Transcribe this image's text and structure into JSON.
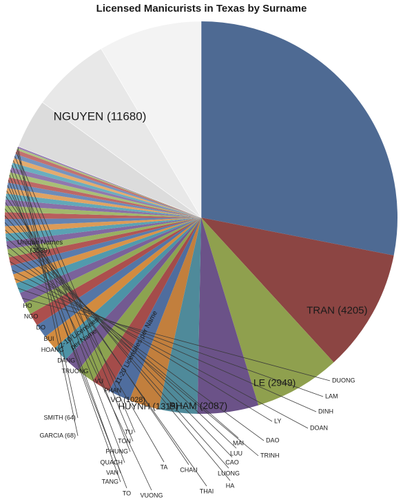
{
  "chart_data": {
    "type": "pie",
    "title": "Licensed Manicurists in Texas by Surname",
    "slices": [
      {
        "label": "NGUYEN (11680)",
        "value": 11680,
        "color": "#4e6a93"
      },
      {
        "label": "TRAN (4205)",
        "value": 4205,
        "color": "#8c4543"
      },
      {
        "label": "LE (2949)",
        "value": 2949,
        "color": "#8fa04e"
      },
      {
        "label": "PHAM (2087)",
        "value": 2087,
        "color": "#6b5288"
      },
      {
        "label": "HUYNH (1319)",
        "value": 1319,
        "color": "#4f8a9a"
      },
      {
        "label": "VO (1028)",
        "value": 1028,
        "color": "#c27f3d"
      },
      {
        "label": "PHAN",
        "value": 760,
        "color": "#4f6d9e"
      },
      {
        "label": "VU",
        "value": 640,
        "color": "#a44c4a"
      },
      {
        "label": "TRUONG",
        "value": 610,
        "color": "#8ca350"
      },
      {
        "label": "DANG",
        "value": 560,
        "color": "#735a91"
      },
      {
        "label": "HOANG",
        "value": 530,
        "color": "#4d93a6"
      },
      {
        "label": "BUI",
        "value": 500,
        "color": "#d28b3f"
      },
      {
        "label": "DO",
        "value": 480,
        "color": "#5476a6"
      },
      {
        "label": "NGO",
        "value": 440,
        "color": "#ac4f4d"
      },
      {
        "label": "HO",
        "value": 410,
        "color": "#92a959"
      },
      {
        "label": "DUONG",
        "value": 380,
        "color": "#7a629b"
      },
      {
        "label": "LAM",
        "value": 350,
        "color": "#519aad"
      },
      {
        "label": "DINH",
        "value": 320,
        "color": "#d8934a"
      },
      {
        "label": "DOAN",
        "value": 300,
        "color": "#5a7cad"
      },
      {
        "label": "LY",
        "value": 290,
        "color": "#b25654"
      },
      {
        "label": "DAO",
        "value": 280,
        "color": "#99b062"
      },
      {
        "label": "TRINH",
        "value": 270,
        "color": "#8168a1"
      },
      {
        "label": "MAI",
        "value": 260,
        "color": "#5aa2b3"
      },
      {
        "label": "LUU",
        "value": 250,
        "color": "#dc9b57"
      },
      {
        "label": "CAO",
        "value": 240,
        "color": "#6384b3"
      },
      {
        "label": "LUONG",
        "value": 230,
        "color": "#b85f5d"
      },
      {
        "label": "HA",
        "value": 220,
        "color": "#a1b86c"
      },
      {
        "label": "THAI",
        "value": 210,
        "color": "#8970a8"
      },
      {
        "label": "CHAU",
        "value": 200,
        "color": "#62a8b9"
      },
      {
        "label": "TA",
        "value": 190,
        "color": "#e0a363"
      },
      {
        "label": "VUONG",
        "value": 185,
        "color": "#6c8cba"
      },
      {
        "label": "TO",
        "value": 180,
        "color": "#bd6866"
      },
      {
        "label": "TANG",
        "value": 175,
        "color": "#a9bf76"
      },
      {
        "label": "VAN",
        "value": 170,
        "color": "#9178ae"
      },
      {
        "label": "QUACH",
        "value": 165,
        "color": "#6aaebf"
      },
      {
        "label": "PHUNG",
        "value": 160,
        "color": "#e4ab6e"
      },
      {
        "label": "TON",
        "value": 150,
        "color": "#7594c0"
      },
      {
        "label": "TU",
        "value": 140,
        "color": "#c27170"
      },
      {
        "label": "GARCIA (68)",
        "value": 68,
        "color": "#b0c580"
      },
      {
        "label": "SMITH (64)",
        "value": 64,
        "color": "#9881b4"
      },
      {
        "label": "11-20 Licensees per Name",
        "value": 1700,
        "color": "#dcdcdc"
      },
      {
        "label": "2-10 Licensees per Name",
        "value": 2700,
        "color": "#e8e8e8"
      },
      {
        "label": "Unique Names (3539)",
        "value": 3539,
        "color": "#f3f3f3"
      }
    ]
  }
}
